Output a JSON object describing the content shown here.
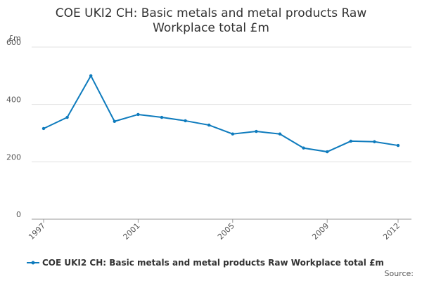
{
  "chart_data": {
    "type": "line",
    "title": [
      "COE UKI2 CH: Basic metals and metal products Raw",
      "Workplace total £m"
    ],
    "y_unit": "£m",
    "source": "Source:",
    "x": [
      1997,
      1998,
      1999,
      2000,
      2001,
      2002,
      2003,
      2004,
      2005,
      2006,
      2007,
      2008,
      2009,
      2010,
      2011,
      2012
    ],
    "xlim": [
      1997,
      2012
    ],
    "xticks": [
      1997,
      2001,
      2005,
      2009,
      2012
    ],
    "series": [
      {
        "name": "COE UKI2 CH: Basic metals and metal products Raw Workplace total £m",
        "color": "#0e7bbd",
        "values": [
          316,
          355,
          500,
          341,
          365,
          355,
          343,
          328,
          297,
          306,
          297,
          248,
          235,
          272,
          270,
          257
        ]
      }
    ],
    "ylim": [
      0,
      600
    ],
    "yticks": [
      0,
      200,
      400,
      600
    ],
    "grid": true
  }
}
